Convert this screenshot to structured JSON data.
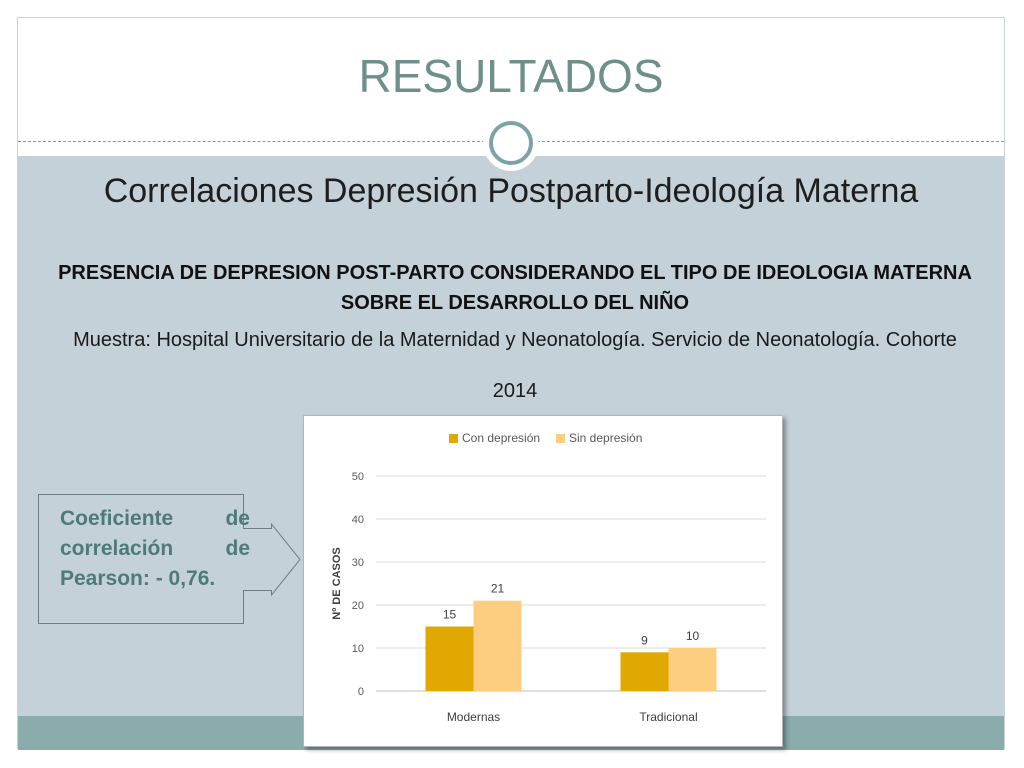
{
  "slide": {
    "title": "RESULTADOS",
    "subtitle": "Correlaciones Depresión Postparto-Ideología Materna",
    "heading": "PRESENCIA DE DEPRESION POST-PARTO CONSIDERANDO EL TIPO DE IDEOLOGIA MATERNA SOBRE EL DESARROLLO DEL NIÑO",
    "sample": "Muestra: Hospital Universitario de la Maternidad y Neonatología. Servicio de Neonatología. Cohorte",
    "sample_year": "2014",
    "callout": "Coeficiente de correlación de Pearson: - 0,76."
  },
  "colors": {
    "accent": "#6e8f8c",
    "content_bg": "#c5d1d8",
    "footer": "#8aacab",
    "series_con": "#e0a800",
    "series_sin": "#fdcd80"
  },
  "chart_data": {
    "type": "bar",
    "title": "",
    "xlabel": "",
    "ylabel": "Nº DE CASOS",
    "categories": [
      "Modernas",
      "Tradicional"
    ],
    "series": [
      {
        "name": "Con depresión",
        "values": [
          15,
          9
        ],
        "color": "#e0a800"
      },
      {
        "name": "Sin depresión",
        "values": [
          21,
          10
        ],
        "color": "#fdcd80"
      }
    ],
    "ylim": [
      0,
      50
    ],
    "yticks": [
      0,
      10,
      20,
      30,
      40,
      50
    ],
    "grid": true,
    "legend": "top-center",
    "data_labels": true
  }
}
